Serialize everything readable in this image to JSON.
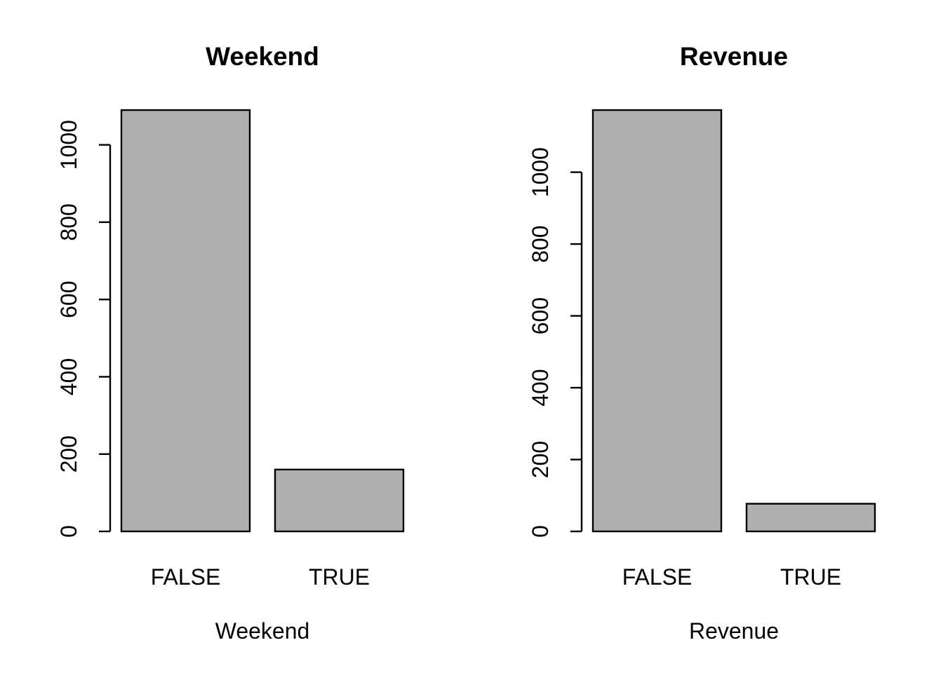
{
  "chart_data": [
    {
      "type": "bar",
      "title": "Weekend",
      "xlabel": "Weekend",
      "ylabel": "",
      "categories": [
        "FALSE",
        "TRUE"
      ],
      "values": [
        1090,
        160
      ],
      "ylim": [
        0,
        1090
      ],
      "yticks": [
        0,
        200,
        400,
        600,
        800,
        1000
      ],
      "bar_color": "#b0b0b0"
    },
    {
      "type": "bar",
      "title": "Revenue",
      "xlabel": "Revenue",
      "ylabel": "",
      "categories": [
        "FALSE",
        "TRUE"
      ],
      "values": [
        1173,
        77
      ],
      "ylim": [
        0,
        1173
      ],
      "yticks": [
        0,
        200,
        400,
        600,
        800,
        1000
      ],
      "bar_color": "#b0b0b0"
    }
  ]
}
